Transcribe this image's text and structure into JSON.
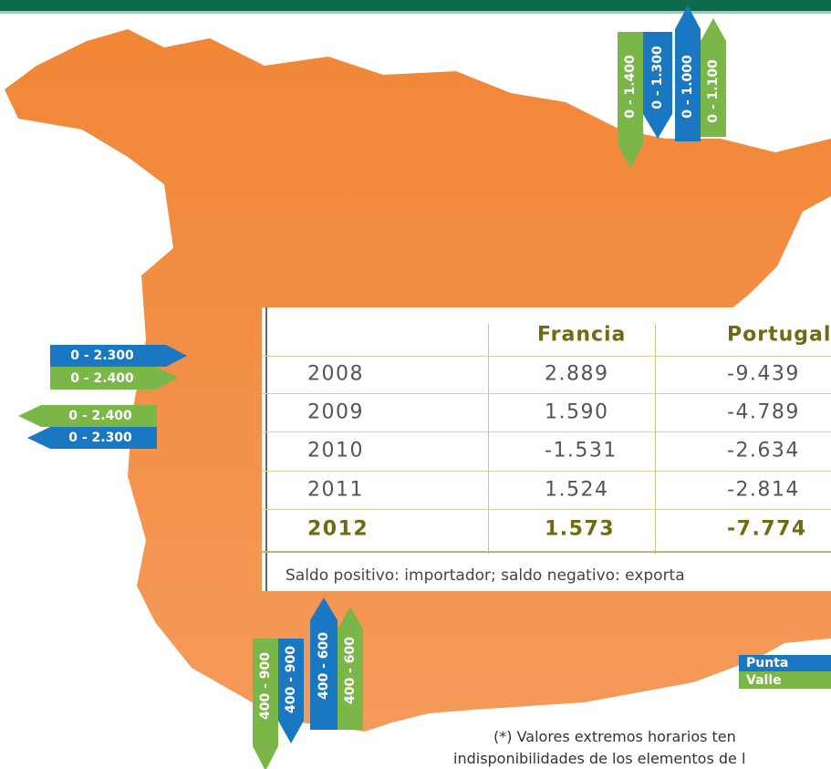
{
  "map": {
    "france_arrows": [
      "0 - 1.400",
      "0 - 1.300",
      "0 - 1.000",
      "0 - 1.100"
    ],
    "portugal_arrows": [
      "0 - 2.300",
      "0 - 2.400",
      "0 - 2.400",
      "0 - 2.300"
    ],
    "morocco_arrows": [
      "400 - 900",
      "400 - 900",
      "400 - 600",
      "400 - 600"
    ]
  },
  "table": {
    "header": [
      "Francia",
      "Portugal"
    ],
    "rows": [
      [
        "2008",
        "2.889",
        "-9.439"
      ],
      [
        "2009",
        "1.590",
        "-4.789"
      ],
      [
        "2010",
        "-1.531",
        "-2.634"
      ],
      [
        "2011",
        "1.524",
        "-2.814"
      ],
      [
        "2012",
        "1.573",
        "-7.774"
      ]
    ],
    "note": "Saldo positivo: importador; saldo negativo: exporta"
  },
  "legend": [
    "Punta",
    "Valle"
  ],
  "footnote": [
    "(*) Valores extremos horarios ten",
    "indisponibilidades de los elementos de l"
  ]
}
